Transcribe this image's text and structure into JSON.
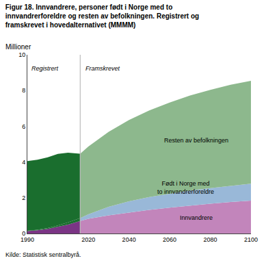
{
  "chart_data": {
    "type": "area",
    "stacked": true,
    "title": "Figur 18. Innvandrere, personer født i Norge med to\ninnvandrerforeldre og resten av befolkningen. Registrert og\nframskrevet i hovedalternativet (MMMM)",
    "ylabel": "Millioner",
    "source": "Kilde: Statistisk sentralbyrå.",
    "annotations": [
      "Registrert",
      "Framskrevet"
    ],
    "vline": {
      "x": 2016,
      "color": "#BBBBBB"
    },
    "xlim": [
      1990,
      2100
    ],
    "xticks": [
      1990,
      2020,
      2040,
      2060,
      2080,
      2100
    ],
    "ylim": [
      0,
      10
    ],
    "yticks": [
      0,
      2,
      4,
      6,
      8,
      10
    ],
    "grid": false,
    "series": [
      {
        "name": "Innvandrere",
        "color": "#7B3585",
        "x": [
          1990,
          1995,
          2000,
          2005,
          2010,
          2016
        ],
        "values": [
          0.13,
          0.18,
          0.26,
          0.37,
          0.5,
          0.7
        ]
      },
      {
        "name": "Født i Norge med\nto innvandrerforeldre",
        "color": "#1A6E2E",
        "x": [
          1990,
          1995,
          2000,
          2005,
          2010,
          2016
        ],
        "values": [
          0.02,
          0.03,
          0.05,
          0.08,
          0.12,
          0.16
        ]
      },
      {
        "name": "Resten av befolkningen",
        "color": "#1A6E2E",
        "x": [
          1990,
          1995,
          2000,
          2005,
          2010,
          2016
        ],
        "values": [
          3.9,
          3.92,
          3.95,
          4.0,
          3.9,
          3.6
        ]
      },
      {
        "name": "Innvandrere",
        "color": "#C285BB",
        "x": [
          2016,
          2020,
          2030,
          2040,
          2050,
          2060,
          2070,
          2080,
          2090,
          2100
        ],
        "values": [
          0.7,
          0.82,
          1.02,
          1.18,
          1.32,
          1.45,
          1.57,
          1.67,
          1.76,
          1.84
        ]
      },
      {
        "name": "Født i Norge med\nto innvandrerforeldre",
        "color": "#99B8D8",
        "x": [
          2016,
          2020,
          2030,
          2040,
          2050,
          2060,
          2070,
          2080,
          2090,
          2100
        ],
        "values": [
          0.16,
          0.25,
          0.47,
          0.62,
          0.72,
          0.78,
          0.83,
          0.87,
          0.91,
          0.95
        ]
      },
      {
        "name": "Resten av befolkningen",
        "color": "#8DB88D",
        "x": [
          2016,
          2020,
          2030,
          2040,
          2050,
          2060,
          2070,
          2080,
          2090,
          2100
        ],
        "values": [
          3.6,
          3.8,
          4.2,
          4.55,
          4.85,
          5.1,
          5.32,
          5.5,
          5.65,
          5.75
        ]
      }
    ]
  }
}
